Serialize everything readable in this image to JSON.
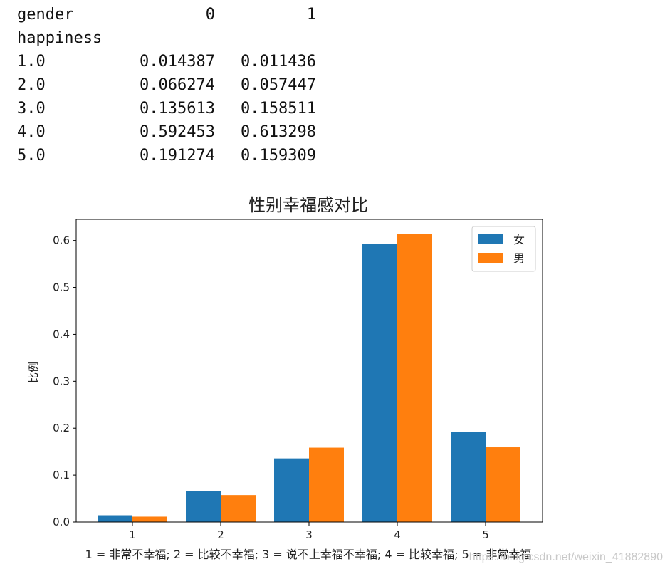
{
  "table": {
    "column_header_label": "gender",
    "columns": [
      "0",
      "1"
    ],
    "index_name": "happiness",
    "rows": [
      {
        "index": "1.0",
        "values": [
          "0.014387",
          "0.011436"
        ]
      },
      {
        "index": "2.0",
        "values": [
          "0.066274",
          "0.057447"
        ]
      },
      {
        "index": "3.0",
        "values": [
          "0.135613",
          "0.158511"
        ]
      },
      {
        "index": "4.0",
        "values": [
          "0.592453",
          "0.613298"
        ]
      },
      {
        "index": "5.0",
        "values": [
          "0.191274",
          "0.159309"
        ]
      }
    ]
  },
  "chart_data": {
    "type": "bar",
    "title": "性别幸福感对比",
    "xlabel": "1 = 非常不幸福; 2 = 比较不幸福; 3 = 说不上幸福不幸福; 4 = 比较幸福; 5 = 非常幸福",
    "ylabel": "比例",
    "categories": [
      "1",
      "2",
      "3",
      "4",
      "5"
    ],
    "series": [
      {
        "name": "女",
        "color": "#1f77b4",
        "values": [
          0.014387,
          0.066274,
          0.135613,
          0.592453,
          0.191274
        ]
      },
      {
        "name": "男",
        "color": "#ff7f0e",
        "values": [
          0.011436,
          0.057447,
          0.158511,
          0.613298,
          0.159309
        ]
      }
    ],
    "ylim": [
      0,
      0.645
    ],
    "yticks": [
      "0.0",
      "0.1",
      "0.2",
      "0.3",
      "0.4",
      "0.5",
      "0.6"
    ],
    "legend_position": "top-right",
    "grid": false
  },
  "watermark": "https://blog.csdn.net/weixin_41882890"
}
